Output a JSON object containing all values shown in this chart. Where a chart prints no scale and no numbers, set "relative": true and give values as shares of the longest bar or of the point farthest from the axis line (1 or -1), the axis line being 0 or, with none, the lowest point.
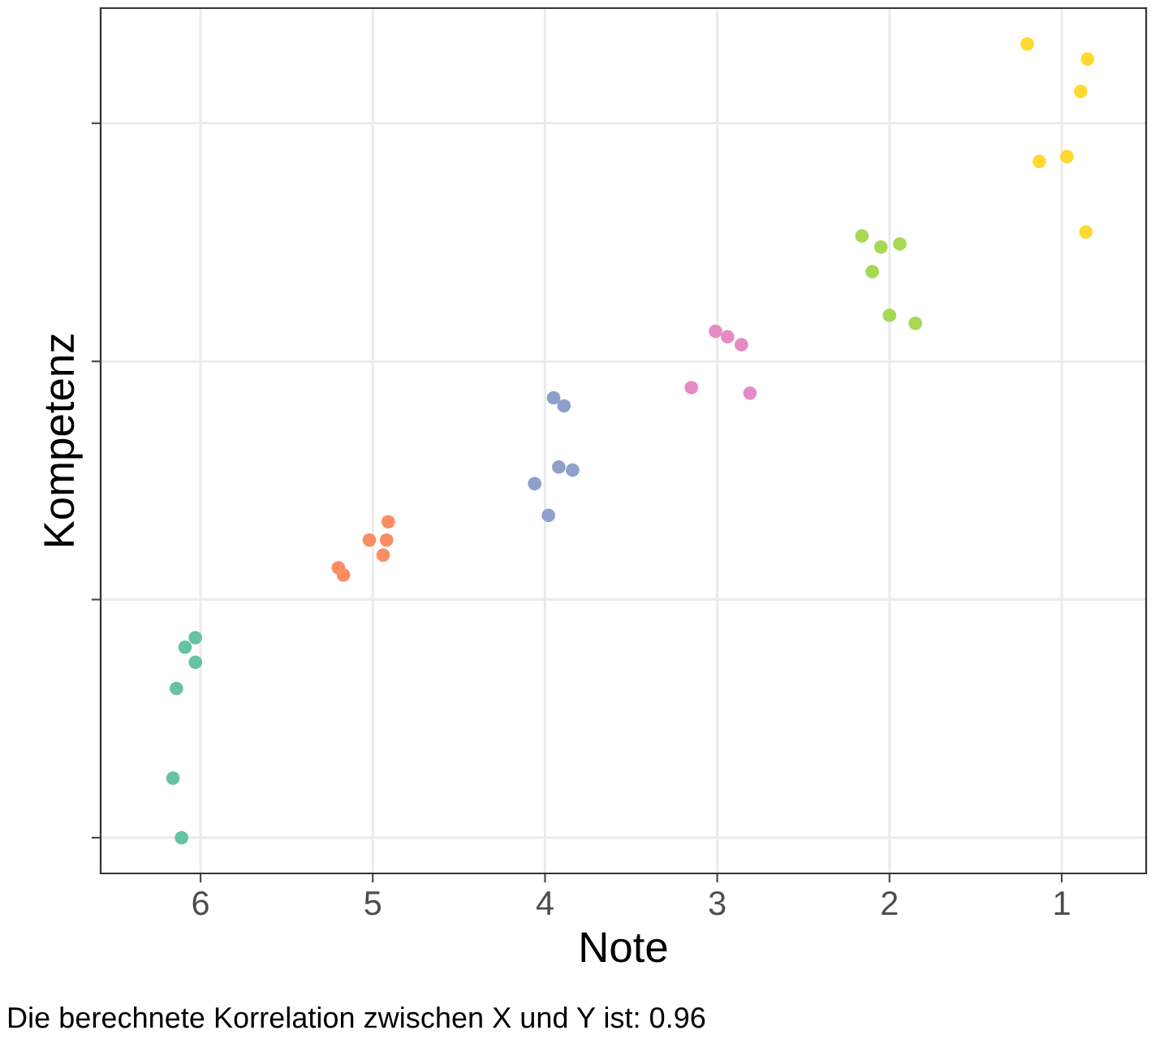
{
  "chart_data": {
    "type": "scatter",
    "xlabel": "Note",
    "ylabel": "Kompetenz",
    "relative": true,
    "xlim": [
      6.58,
      0.51
    ],
    "xticks": [
      6,
      5,
      4,
      3,
      2,
      1
    ],
    "tick_labels": "x",
    "grid": true,
    "legend": false,
    "marker": "circle",
    "annotations": [
      "Die berechnete Korrelation zwischen X und Y ist: 0.96"
    ],
    "series": [
      {
        "color": "#66c2a5",
        "x": [
          6.03,
          6.09,
          6.03,
          6.14,
          6.16,
          6.11
        ],
        "values": [
          0.252,
          0.24,
          0.221,
          0.188,
          0.075,
          0
        ]
      },
      {
        "color": "#fc8d62",
        "x": [
          4.91,
          5.02,
          4.92,
          4.94,
          5.2,
          5.17
        ],
        "values": [
          0.398,
          0.375,
          0.375,
          0.356,
          0.34,
          0.331
        ]
      },
      {
        "color": "#8da0cb",
        "x": [
          3.95,
          3.89,
          3.92,
          3.84,
          4.06,
          3.98
        ],
        "values": [
          0.554,
          0.544,
          0.467,
          0.463,
          0.446,
          0.406
        ]
      },
      {
        "color": "#e78ac3",
        "x": [
          3.01,
          2.94,
          2.86,
          3.15,
          2.81
        ],
        "values": [
          0.638,
          0.631,
          0.621,
          0.567,
          0.56
        ]
      },
      {
        "color": "#a6d854",
        "x": [
          2.16,
          2.05,
          1.94,
          2.1,
          2.0,
          1.85
        ],
        "values": [
          0.758,
          0.744,
          0.748,
          0.713,
          0.658,
          0.648
        ]
      },
      {
        "color": "#ffd92f",
        "x": [
          1.2,
          0.85,
          0.89,
          1.13,
          0.97,
          0.86
        ],
        "values": [
          1,
          0.981,
          0.94,
          0.852,
          0.858,
          0.763
        ]
      }
    ]
  }
}
